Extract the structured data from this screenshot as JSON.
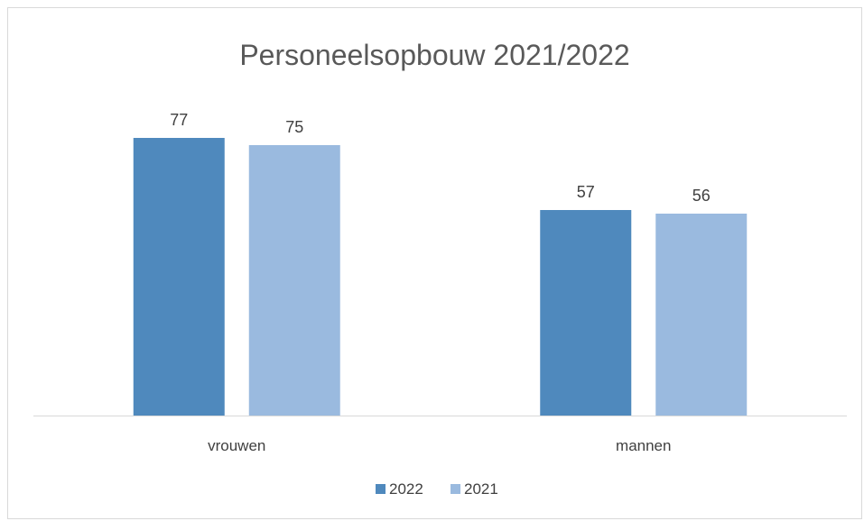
{
  "chart_data": {
    "type": "bar",
    "title": "Personeelsopbouw 2021/2022",
    "categories": [
      "vrouwen",
      "mannen"
    ],
    "series": [
      {
        "name": "2022",
        "values": [
          77,
          57
        ],
        "color": "#4f89bd"
      },
      {
        "name": "2021",
        "values": [
          75,
          56
        ],
        "color": "#9aba e0"
      }
    ],
    "xlabel": "",
    "ylabel": "",
    "ylim": [
      0,
      80
    ],
    "grid": false,
    "data_labels": true,
    "legend": "bottom"
  }
}
